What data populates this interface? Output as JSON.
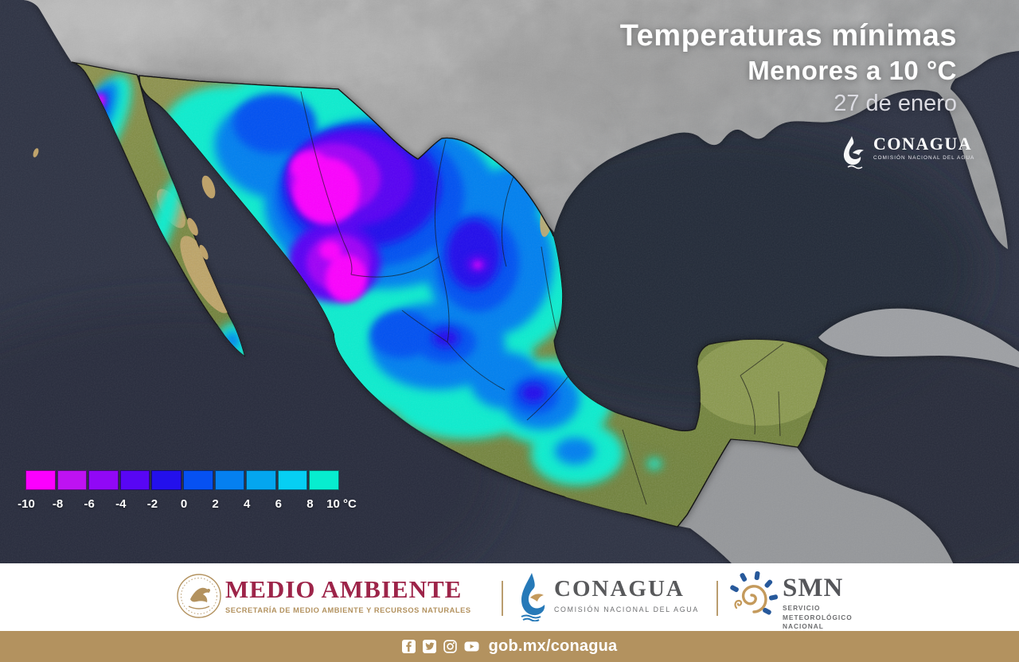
{
  "header": {
    "title_line1": "Temperaturas mínimas",
    "title_line2": "Menores a 10 °C",
    "date": "27 de enero"
  },
  "watermark": {
    "name": "CONAGUA",
    "subtitle": "COMISIÓN NACIONAL DEL AGUA"
  },
  "legend": {
    "unit": "°C",
    "values": [
      "-10",
      "-8",
      "-6",
      "-4",
      "-2",
      "0",
      "2",
      "4",
      "6",
      "8",
      "10"
    ],
    "colors": [
      "#FB00FE",
      "#BE12F2",
      "#9108F6",
      "#5806F4",
      "#2310EC",
      "#0651F2",
      "#0580F0",
      "#04A6EF",
      "#06CFF3",
      "#07EDCF"
    ]
  },
  "footer": {
    "medio_ambiente": {
      "title": "MEDIO AMBIENTE",
      "subtitle": "SECRETARÍA DE MEDIO AMBIENTE Y RECURSOS NATURALES"
    },
    "conagua": {
      "title": "CONAGUA",
      "subtitle": "COMISIÓN NACIONAL DEL AGUA"
    },
    "smn": {
      "title": "SMN",
      "subtitle_line1": "SERVICIO",
      "subtitle_line2": "METEOROLÓGICO",
      "subtitle_line3": "NACIONAL"
    }
  },
  "bottom_bar": {
    "url": "gob.mx/conagua",
    "social_icons": [
      "facebook",
      "twitter",
      "instagram",
      "youtube"
    ]
  },
  "theme": {
    "gold": "#B3925F",
    "guinda": "#9D2449",
    "logo_gray": "#58595B",
    "ocean": "#2A3040"
  }
}
